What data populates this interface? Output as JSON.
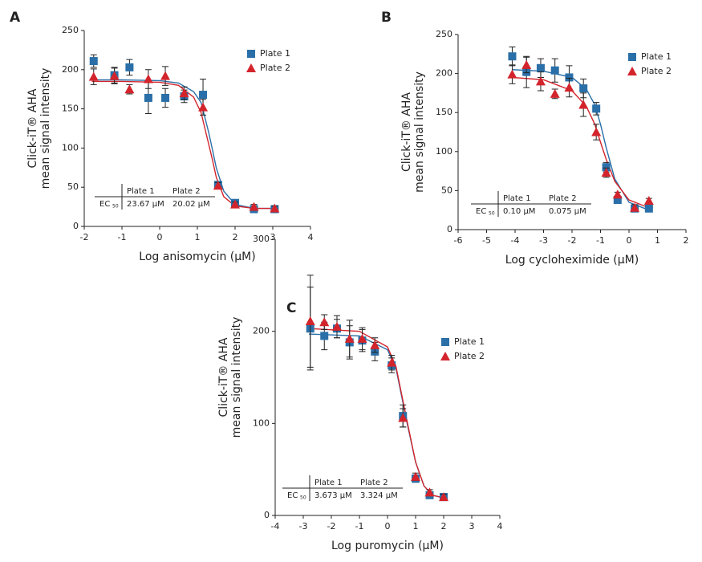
{
  "chart_data": [
    {
      "type": "scatter",
      "panel": "A",
      "xlabel": "Log anisomycin (µM)",
      "ylabel": [
        "Click-iT® AHA",
        "mean signal intensity"
      ],
      "xlim": [
        -2,
        4
      ],
      "xticks": [
        -2,
        -1,
        0,
        1,
        2,
        3,
        4
      ],
      "ylim": [
        0,
        250
      ],
      "yticks": [
        0,
        50,
        100,
        150,
        200,
        250
      ],
      "series": [
        {
          "name": "Plate 1",
          "color": "#2a6fa8",
          "marker": "square",
          "x": [
            -1.75,
            -1.2,
            -0.8,
            -0.3,
            0.15,
            0.65,
            1.15,
            1.55,
            2.0,
            2.5,
            3.05
          ],
          "values": [
            211,
            193,
            203,
            164,
            164,
            166,
            168,
            53,
            30,
            22,
            22
          ],
          "errors": [
            8,
            10,
            10,
            20,
            12,
            8,
            20,
            4,
            4,
            3,
            3
          ],
          "fit": {
            "x": [
              -1.8,
              -1,
              0,
              0.5,
              0.9,
              1.1,
              1.3,
              1.4,
              1.5,
              1.7,
              2,
              2.5,
              3.1
            ],
            "values": [
              187,
              187,
              186,
              183,
              172,
              158,
              120,
              98,
              75,
              45,
              28,
              23,
              23
            ]
          }
        },
        {
          "name": "Plate 2",
          "color": "#d3242c",
          "marker": "triangle",
          "x": [
            -1.75,
            -1.2,
            -0.8,
            -0.3,
            0.15,
            0.65,
            1.15,
            1.55,
            2.0,
            2.5,
            3.05
          ],
          "values": [
            191,
            192,
            175,
            188,
            192,
            170,
            152,
            52,
            28,
            25,
            23
          ],
          "errors": [
            10,
            10,
            6,
            12,
            12,
            8,
            10,
            4,
            3,
            3,
            3
          ],
          "fit": {
            "x": [
              -1.8,
              -1,
              0,
              0.5,
              0.9,
              1.1,
              1.3,
              1.4,
              1.5,
              1.7,
              2,
              2.5,
              3.1
            ],
            "values": [
              185,
              185,
              184,
              180,
              165,
              145,
              105,
              85,
              63,
              38,
              26,
              23,
              23
            ]
          }
        }
      ],
      "ec50": {
        "columns": [
          "Plate 1",
          "Plate 2"
        ],
        "row": "EC",
        "row_sub": "50",
        "cells": [
          "23.67 µM",
          "20.02 µM"
        ]
      }
    },
    {
      "type": "scatter",
      "panel": "B",
      "xlabel": "Log cycloheximide (µM)",
      "ylabel": [
        "Click-iT® AHA",
        "mean signal intensity"
      ],
      "xlim": [
        -6,
        2
      ],
      "xticks": [
        -6,
        -5,
        -4,
        -3,
        -2,
        -1,
        0,
        1,
        2
      ],
      "ylim": [
        0,
        250
      ],
      "yticks": [
        0,
        50,
        100,
        150,
        200,
        250
      ],
      "series": [
        {
          "name": "Plate 1",
          "color": "#2a6fa8",
          "marker": "square",
          "x": [
            -4.1,
            -3.6,
            -3.1,
            -2.6,
            -2.1,
            -1.6,
            -1.15,
            -0.8,
            -0.4,
            0.2,
            0.7
          ],
          "values": [
            222,
            202,
            207,
            204,
            195,
            181,
            155,
            80,
            38,
            27,
            27
          ],
          "errors": [
            12,
            20,
            12,
            15,
            15,
            12,
            8,
            6,
            4,
            4,
            3
          ],
          "fit": {
            "x": [
              -4.1,
              -3,
              -2,
              -1.5,
              -1.2,
              -1,
              -0.8,
              -0.5,
              0,
              0.7
            ],
            "values": [
              205,
              203,
              195,
              180,
              160,
              135,
              105,
              65,
              35,
              25
            ]
          }
        },
        {
          "name": "Plate 2",
          "color": "#d3242c",
          "marker": "triangle",
          "x": [
            -4.1,
            -3.6,
            -3.1,
            -2.6,
            -2.1,
            -1.6,
            -1.15,
            -0.8,
            -0.4,
            0.2,
            0.7
          ],
          "values": [
            199,
            211,
            190,
            174,
            182,
            160,
            125,
            73,
            45,
            28,
            37
          ],
          "errors": [
            12,
            10,
            12,
            6,
            12,
            15,
            10,
            6,
            3,
            4,
            3
          ],
          "fit": {
            "x": [
              -4.1,
              -3,
              -2,
              -1.5,
              -1.2,
              -1,
              -0.8,
              -0.5,
              0,
              0.7
            ],
            "values": [
              195,
              192,
              178,
              158,
              135,
              112,
              90,
              62,
              38,
              28
            ]
          }
        }
      ],
      "ec50": {
        "columns": [
          "Plate 1",
          "Plate 2"
        ],
        "row": "EC",
        "row_sub": "50",
        "cells": [
          "0.10 µM",
          "0.075 µM"
        ]
      }
    },
    {
      "type": "scatter",
      "panel": "C",
      "xlabel": "Log puromycin (µM)",
      "ylabel": [
        "Click-iT® AHA",
        "mean signal intensity"
      ],
      "xlim": [
        -4,
        4
      ],
      "xticks": [
        -4,
        -3,
        -2,
        -1,
        0,
        1,
        2,
        3,
        4
      ],
      "ylim": [
        0,
        300
      ],
      "yticks": [
        0,
        100,
        200,
        300
      ],
      "series": [
        {
          "name": "Plate 1",
          "color": "#2a6fa8",
          "marker": "square",
          "x": [
            -2.75,
            -2.25,
            -1.8,
            -1.35,
            -0.9,
            -0.45,
            0.15,
            0.55,
            1.0,
            1.5,
            2.0
          ],
          "values": [
            203,
            195,
            203,
            188,
            190,
            178,
            163,
            108,
            40,
            22,
            20
          ],
          "errors": [
            45,
            15,
            10,
            18,
            12,
            10,
            8,
            12,
            4,
            3,
            3
          ],
          "fit": {
            "x": [
              -2.8,
              -1,
              0,
              0.3,
              0.5,
              0.7,
              1,
              1.3,
              1.6,
              2
            ],
            "values": [
              197,
              195,
              180,
              160,
              130,
              100,
              58,
              32,
              22,
              19
            ]
          }
        },
        {
          "name": "Plate 2",
          "color": "#d3242c",
          "marker": "triangle",
          "x": [
            -2.75,
            -2.25,
            -1.8,
            -1.35,
            -0.9,
            -0.45,
            0.15,
            0.55,
            1.0,
            1.5,
            2.0
          ],
          "values": [
            211,
            210,
            205,
            192,
            192,
            185,
            166,
            106,
            42,
            25,
            20
          ],
          "errors": [
            50,
            8,
            12,
            20,
            12,
            8,
            8,
            10,
            4,
            3,
            3
          ],
          "fit": {
            "x": [
              -2.8,
              -1,
              0,
              0.3,
              0.5,
              0.7,
              1,
              1.3,
              1.6,
              2
            ],
            "values": [
              203,
              200,
              183,
              162,
              132,
              102,
              58,
              32,
              22,
              19
            ]
          }
        }
      ],
      "ec50": {
        "columns": [
          "Plate 1",
          "Plate 2"
        ],
        "row": "EC",
        "row_sub": "50",
        "cells": [
          "3.673 µM",
          "3.324 µM"
        ]
      }
    }
  ]
}
